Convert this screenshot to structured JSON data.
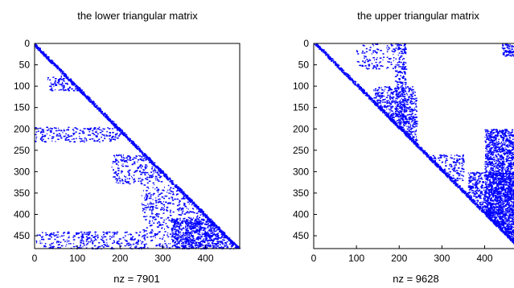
{
  "chart_data": [
    {
      "type": "spy",
      "title": "the lower triangular matrix",
      "xlabel": "nz = 7901",
      "xlim": [
        0,
        480
      ],
      "ylim": [
        0,
        480
      ],
      "y_reversed": true,
      "xticks": [
        0,
        100,
        200,
        300,
        400
      ],
      "yticks": [
        0,
        50,
        100,
        150,
        200,
        250,
        300,
        350,
        400,
        450
      ],
      "marker_color": "#0000ff",
      "clusters": [
        {
          "rows": [
            0,
            10
          ],
          "cols": [
            0,
            10
          ],
          "density": 0.9
        },
        {
          "rows": [
            75,
            110
          ],
          "cols": [
            30,
            100
          ],
          "density": 0.25
        },
        {
          "rows": [
            195,
            230
          ],
          "cols": [
            0,
            200
          ],
          "density": 0.18
        },
        {
          "rows": [
            260,
            330
          ],
          "cols": [
            180,
            300
          ],
          "density": 0.18
        },
        {
          "rows": [
            330,
            390
          ],
          "cols": [
            250,
            380
          ],
          "density": 0.15
        },
        {
          "rows": [
            380,
            480
          ],
          "cols": [
            250,
            420
          ],
          "density": 0.12
        },
        {
          "rows": [
            410,
            480
          ],
          "cols": [
            320,
            480
          ],
          "density": 0.45
        },
        {
          "rows": [
            440,
            480
          ],
          "cols": [
            0,
            260
          ],
          "density": 0.18
        }
      ]
    },
    {
      "type": "spy",
      "title": "the upper triangular matrix",
      "xlabel": "nz = 9628",
      "xlim": [
        0,
        480
      ],
      "ylim": [
        0,
        480
      ],
      "y_reversed": true,
      "xticks": [
        0,
        100,
        200,
        300,
        400
      ],
      "yticks": [
        0,
        50,
        100,
        150,
        200,
        250,
        300,
        350,
        400,
        450
      ],
      "marker_color": "#0000ff",
      "clusters": [
        {
          "rows": [
            0,
            200
          ],
          "cols": [
            190,
            215
          ],
          "density": 0.3
        },
        {
          "rows": [
            0,
            60
          ],
          "cols": [
            100,
            190
          ],
          "density": 0.12
        },
        {
          "rows": [
            100,
            230
          ],
          "cols": [
            140,
            240
          ],
          "density": 0.35
        },
        {
          "rows": [
            260,
            330
          ],
          "cols": [
            270,
            350
          ],
          "density": 0.2
        },
        {
          "rows": [
            200,
            480
          ],
          "cols": [
            400,
            480
          ],
          "density": 0.55
        },
        {
          "rows": [
            300,
            480
          ],
          "cols": [
            360,
            480
          ],
          "density": 0.35
        },
        {
          "rows": [
            0,
            30
          ],
          "cols": [
            440,
            480
          ],
          "density": 0.5
        }
      ]
    }
  ]
}
